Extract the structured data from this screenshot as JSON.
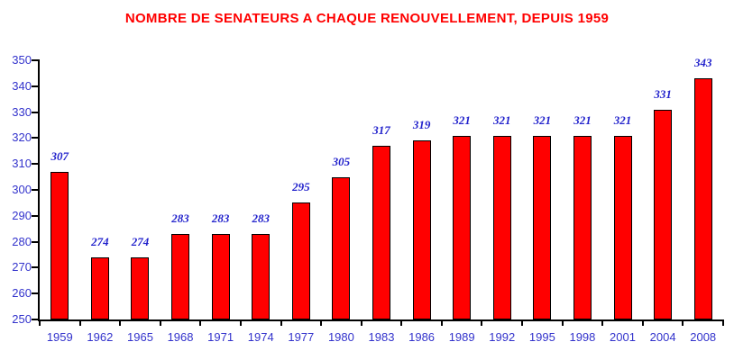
{
  "chart_data": {
    "type": "bar",
    "title": "NOMBRE DE SENATEURS A CHAQUE RENOUVELLEMENT, DEPUIS 1959",
    "categories": [
      "1959",
      "1962",
      "1965",
      "1968",
      "1971",
      "1974",
      "1977",
      "1980",
      "1983",
      "1986",
      "1989",
      "1992",
      "1995",
      "1998",
      "2001",
      "2004",
      "2008"
    ],
    "values": [
      307,
      274,
      274,
      283,
      283,
      283,
      295,
      305,
      317,
      319,
      321,
      321,
      321,
      321,
      321,
      331,
      343
    ],
    "xlabel": "",
    "ylabel": "",
    "ylim": [
      250,
      350
    ],
    "ytick_step": 10,
    "ytick_labels": [
      "250",
      "260",
      "270",
      "280",
      "290",
      "300",
      "310",
      "320",
      "330",
      "340",
      "350"
    ],
    "grid": false,
    "legend": null,
    "data_labels_shown": true
  },
  "colors": {
    "background": "#FFFFFF",
    "title": "#FF0000",
    "bar_fill": "#FF0000",
    "bar_border": "#000000",
    "axis": "#000000",
    "axis_label": "#3333CC",
    "data_label": "#2222CC"
  }
}
